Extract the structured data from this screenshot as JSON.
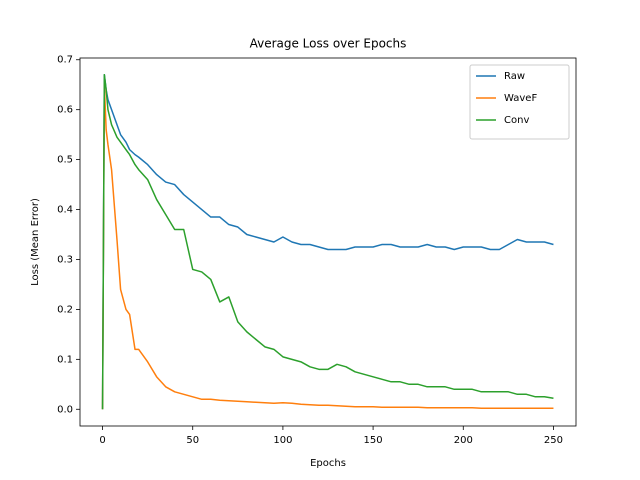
{
  "chart_data": {
    "type": "line",
    "title": "Average Loss over Epochs",
    "x_label": "Epochs",
    "y_label": "Loss (Mean Error)",
    "x": [
      0,
      1,
      2,
      3,
      5,
      8,
      10,
      13,
      15,
      18,
      20,
      25,
      30,
      35,
      40,
      45,
      50,
      55,
      60,
      65,
      70,
      75,
      80,
      85,
      90,
      95,
      100,
      105,
      110,
      115,
      120,
      125,
      130,
      135,
      140,
      145,
      150,
      155,
      160,
      165,
      170,
      175,
      180,
      185,
      190,
      195,
      200,
      205,
      210,
      215,
      220,
      225,
      230,
      235,
      240,
      245,
      250
    ],
    "series": [
      {
        "name": "Raw",
        "color": "#1f77b4",
        "values": [
          0,
          0.67,
          0.64,
          0.62,
          0.6,
          0.57,
          0.55,
          0.535,
          0.52,
          0.51,
          0.505,
          0.49,
          0.47,
          0.455,
          0.45,
          0.43,
          0.415,
          0.4,
          0.385,
          0.385,
          0.37,
          0.365,
          0.35,
          0.345,
          0.34,
          0.335,
          0.345,
          0.335,
          0.33,
          0.33,
          0.325,
          0.32,
          0.32,
          0.32,
          0.325,
          0.325,
          0.325,
          0.33,
          0.33,
          0.325,
          0.325,
          0.325,
          0.33,
          0.325,
          0.325,
          0.32,
          0.325,
          0.325,
          0.325,
          0.32,
          0.32,
          0.33,
          0.34,
          0.335,
          0.335,
          0.335,
          0.33
        ]
      },
      {
        "name": "WaveF",
        "color": "#ff7f0e",
        "values": [
          0,
          0.65,
          0.56,
          0.53,
          0.48,
          0.34,
          0.24,
          0.2,
          0.19,
          0.12,
          0.12,
          0.095,
          0.065,
          0.045,
          0.035,
          0.03,
          0.025,
          0.02,
          0.02,
          0.018,
          0.017,
          0.016,
          0.015,
          0.014,
          0.013,
          0.012,
          0.013,
          0.012,
          0.01,
          0.009,
          0.008,
          0.008,
          0.007,
          0.006,
          0.005,
          0.005,
          0.005,
          0.004,
          0.004,
          0.004,
          0.004,
          0.004,
          0.003,
          0.003,
          0.003,
          0.003,
          0.003,
          0.003,
          0.002,
          0.002,
          0.002,
          0.002,
          0.002,
          0.002,
          0.002,
          0.002,
          0.002
        ]
      },
      {
        "name": "Conv",
        "color": "#2ca02c",
        "values": [
          0,
          0.67,
          0.64,
          0.6,
          0.57,
          0.545,
          0.535,
          0.52,
          0.51,
          0.49,
          0.48,
          0.46,
          0.42,
          0.39,
          0.36,
          0.36,
          0.28,
          0.275,
          0.26,
          0.215,
          0.225,
          0.175,
          0.155,
          0.14,
          0.125,
          0.12,
          0.105,
          0.1,
          0.095,
          0.085,
          0.08,
          0.08,
          0.09,
          0.085,
          0.075,
          0.07,
          0.065,
          0.06,
          0.055,
          0.055,
          0.05,
          0.05,
          0.045,
          0.045,
          0.045,
          0.04,
          0.04,
          0.04,
          0.035,
          0.035,
          0.035,
          0.035,
          0.03,
          0.03,
          0.025,
          0.025,
          0.022
        ]
      }
    ],
    "xlim": [
      -12.5,
      262.5
    ],
    "ylim": [
      -0.0335,
      0.7035
    ],
    "xticks": [
      0,
      50,
      100,
      150,
      200,
      250
    ],
    "yticks": [
      {
        "value": 0,
        "label": "0.0"
      },
      0.1,
      0.2,
      0.3,
      0.4,
      0.5,
      0.6,
      0.7
    ],
    "legend": "upper right"
  }
}
